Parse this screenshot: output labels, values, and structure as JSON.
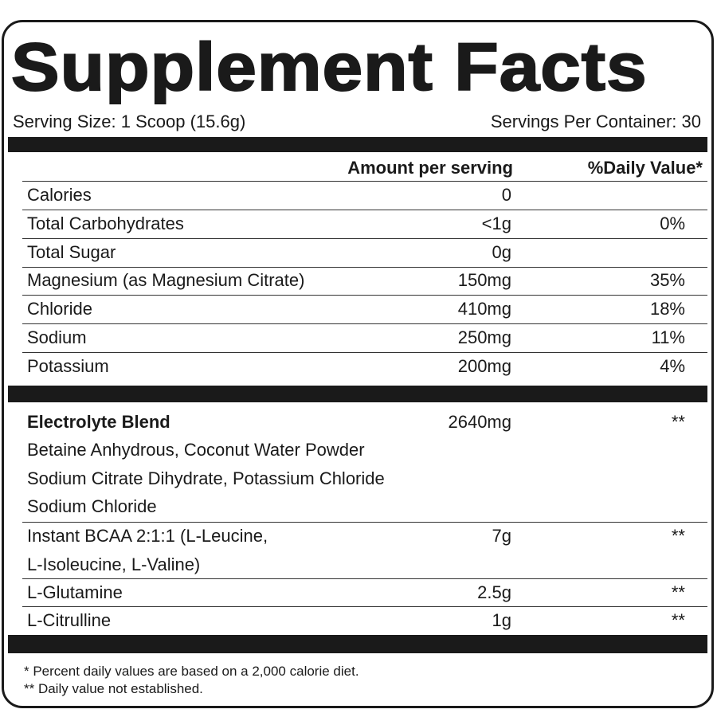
{
  "title": "Supplement Facts",
  "serving_size": "Serving Size: 1 Scoop (15.6g)",
  "servings_per_container": "Servings Per Container: 30",
  "header": {
    "amount": "Amount per serving",
    "dv": "%Daily Value*"
  },
  "nutrients": [
    {
      "name": "Calories",
      "amount": "0",
      "dv": ""
    },
    {
      "name": "Total Carbohydrates",
      "amount": "<1g",
      "dv": "0%"
    },
    {
      "name": "Total Sugar",
      "amount": "0g",
      "dv": ""
    },
    {
      "name": "Magnesium (as Magnesium Citrate)",
      "amount": "150mg",
      "dv": "35%"
    },
    {
      "name": "Chloride",
      "amount": "410mg",
      "dv": "18%"
    },
    {
      "name": "Sodium",
      "amount": "250mg",
      "dv": "11%"
    },
    {
      "name": "Potassium",
      "amount": "200mg",
      "dv": "4%"
    }
  ],
  "blend": {
    "name": "Electrolyte Blend",
    "amount": "2640mg",
    "dv": "**",
    "lines": [
      "Betaine Anhydrous, Coconut Water Powder",
      "Sodium Citrate Dihydrate, Potassium Chloride",
      "Sodium Chloride"
    ]
  },
  "others": [
    {
      "name": "Instant BCAA 2:1:1 (L-Leucine,",
      "name2": "L-Isoleucine, L-Valine)",
      "amount": "7g",
      "dv": "**"
    },
    {
      "name": "L-Glutamine",
      "amount": "2.5g",
      "dv": "**"
    },
    {
      "name": "L-Citrulline",
      "amount": "1g",
      "dv": "**"
    }
  ],
  "footnotes": [
    "* Percent daily values are based on a 2,000 calorie diet.",
    "** Daily value not established."
  ]
}
